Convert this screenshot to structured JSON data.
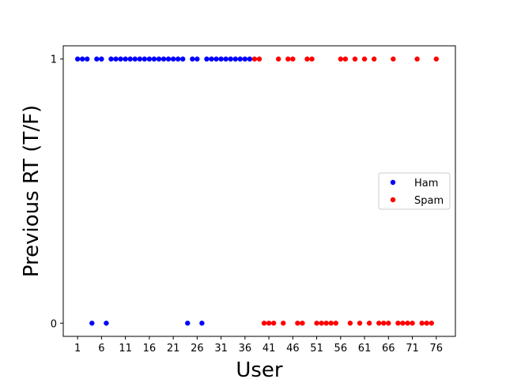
{
  "chart_data": {
    "type": "scatter",
    "xlabel": "User",
    "ylabel": "Previous RT (T/F)",
    "xlim": [
      -2,
      80
    ],
    "ylim": [
      -0.05,
      1.05
    ],
    "xticks": [
      1,
      6,
      11,
      16,
      21,
      26,
      31,
      36,
      41,
      46,
      51,
      56,
      61,
      66,
      71,
      76
    ],
    "yticks": [
      0,
      1
    ],
    "grid": false,
    "legend_position": "center-right",
    "series": [
      {
        "name": "Ham",
        "color": "#0000ff",
        "x": [
          1,
          2,
          3,
          4,
          5,
          6,
          7,
          8,
          9,
          10,
          11,
          12,
          13,
          14,
          15,
          16,
          17,
          18,
          19,
          20,
          21,
          22,
          23,
          24,
          25,
          26,
          27,
          28,
          29,
          30,
          31,
          32,
          33,
          34,
          35,
          36,
          37
        ],
        "y": [
          1,
          1,
          1,
          0,
          1,
          1,
          0,
          1,
          1,
          1,
          1,
          1,
          1,
          1,
          1,
          1,
          1,
          1,
          1,
          1,
          1,
          1,
          1,
          0,
          1,
          1,
          0,
          1,
          1,
          1,
          1,
          1,
          1,
          1,
          1,
          1,
          1
        ]
      },
      {
        "name": "Spam",
        "color": "#ff0000",
        "x": [
          38,
          39,
          40,
          41,
          42,
          43,
          44,
          45,
          46,
          47,
          48,
          49,
          50,
          51,
          52,
          53,
          54,
          55,
          56,
          57,
          58,
          59,
          60,
          61,
          62,
          63,
          64,
          65,
          66,
          67,
          68,
          69,
          70,
          71,
          72,
          73,
          74,
          75,
          76
        ],
        "y": [
          1,
          1,
          0,
          0,
          0,
          1,
          0,
          1,
          1,
          0,
          0,
          1,
          1,
          0,
          0,
          0,
          0,
          0,
          1,
          1,
          0,
          1,
          0,
          1,
          0,
          1,
          0,
          0,
          0,
          1,
          0,
          0,
          0,
          0,
          1,
          0,
          0,
          0,
          1
        ]
      }
    ]
  }
}
